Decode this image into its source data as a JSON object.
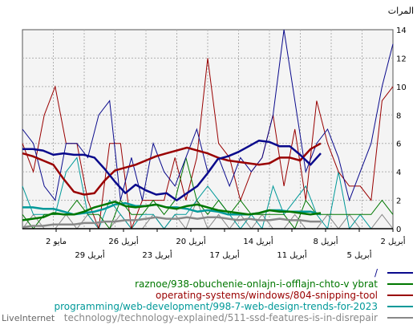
{
  "chart_data": {
    "type": "line",
    "title": "",
    "ylabel": "المرات",
    "xlabel": "",
    "ylim": [
      0,
      14
    ],
    "y_ticks": [
      0,
      2,
      4,
      6,
      8,
      10,
      12,
      14
    ],
    "x_axis_reversed": true,
    "x_tick_labels_row1": [
      "2 أبريل",
      "8 أبريل",
      "14 أبريل",
      "20 أبريل",
      "26 أبريل",
      "2 مايو"
    ],
    "x_tick_labels_row2": [
      "5 أبريل",
      "11 أبريل",
      "17 أبريل",
      "23 أبريل",
      "29 أبريل"
    ],
    "grid": true,
    "legend_position": "bottom-right",
    "footer_left": "LiveInternet",
    "series": [
      {
        "name": "/",
        "color": "#0a0a8c",
        "raw": [
          13,
          10,
          6,
          4,
          2,
          5,
          7,
          6,
          4,
          9,
          14,
          8,
          5,
          4,
          5,
          3,
          5,
          4,
          7,
          5,
          3,
          4,
          6,
          2,
          5,
          2,
          9,
          8,
          5,
          6,
          6,
          2,
          3,
          6,
          7
        ],
        "avg": [
          5.3,
          4.5,
          5.2,
          5.8,
          5.8,
          6.1,
          6.2,
          5.8,
          5.4,
          5.1,
          4.9,
          3.9,
          3.0,
          2.5,
          2.0,
          2.5,
          2.4,
          2.7,
          3.1,
          2.5,
          3.3,
          4.2,
          5.0,
          5.2,
          5.2,
          5.3,
          5.2,
          5.5,
          5.6,
          5.6
        ]
      },
      {
        "name": "raznoe/938-obuchenie-onlajn-i-offlajn-chto-v ybrat",
        "color": "#007700",
        "raw": [
          1,
          2,
          1,
          1,
          1,
          1,
          1,
          1,
          2,
          0,
          1,
          1,
          1,
          1,
          2,
          1,
          2,
          1,
          2,
          5,
          2,
          1,
          2,
          1,
          1,
          2,
          0,
          1,
          1,
          2,
          1,
          1,
          1,
          0,
          1
        ],
        "avg": [
          1.1,
          1.0,
          1.1,
          1.2,
          1.2,
          1.3,
          1.1,
          1.0,
          1.1,
          1.2,
          1.3,
          1.5,
          1.7,
          1.6,
          1.4,
          1.5,
          1.7,
          1.6,
          1.5,
          1.6,
          1.9,
          1.7,
          1.5,
          1.2,
          1.0,
          1.0,
          1.1,
          0.8,
          0.7,
          0.6
        ]
      },
      {
        "name": "operating-systems/windows/804-snipping-tool",
        "color": "#990000",
        "raw": [
          10,
          9,
          2,
          3,
          3,
          4,
          6,
          9,
          2,
          7,
          3,
          8,
          5,
          4,
          2,
          5,
          6,
          12,
          5,
          2,
          5,
          2,
          2,
          2,
          0,
          6,
          6,
          0,
          2,
          6,
          6,
          10,
          8,
          4,
          6
        ],
        "avg": [
          6.0,
          5.6,
          4.8,
          5.0,
          5.0,
          4.6,
          4.5,
          4.6,
          4.7,
          4.8,
          5.0,
          5.3,
          5.5,
          5.7,
          5.5,
          5.3,
          5.1,
          4.8,
          4.5,
          4.3,
          4.1,
          3.4,
          2.5,
          2.4,
          2.6,
          3.5,
          4.5,
          4.8,
          5.1,
          5.3
        ]
      },
      {
        "name": "programming/web-development/998-7-web-design-trends-for-2023",
        "color": "#009999",
        "raw": [
          0,
          0,
          0,
          1,
          0,
          4,
          0,
          1,
          3,
          2,
          1,
          3,
          0,
          1,
          0,
          1,
          2,
          3,
          2,
          1,
          1,
          0,
          1,
          1,
          0,
          1,
          2,
          0,
          1,
          5,
          4,
          1,
          1,
          1,
          3
        ],
        "avg": [
          1.0,
          1.2,
          1.2,
          1.2,
          1.3,
          1.3,
          1.1,
          1.0,
          1.0,
          1.0,
          1.2,
          1.3,
          1.2,
          1.4,
          1.5,
          1.5,
          1.7,
          1.6,
          1.6,
          1.8,
          1.7,
          1.4,
          1.2,
          1.1,
          1.0,
          1.2,
          1.4,
          1.4,
          1.5,
          1.5
        ]
      },
      {
        "name": "technology/technology-explained/511-ssd-features-is-in-disrepair",
        "color": "#888888",
        "raw": [
          0,
          1,
          0,
          0,
          1,
          0,
          1,
          0,
          0,
          1,
          0,
          0,
          1,
          0,
          1,
          0,
          1,
          0,
          2,
          0,
          1,
          0,
          1,
          0,
          0,
          1,
          0,
          0,
          1,
          0,
          1,
          0,
          0,
          1,
          0
        ],
        "avg": [
          0.5,
          0.5,
          0.6,
          0.6,
          0.7,
          0.6,
          0.6,
          0.7,
          0.6,
          0.7,
          0.8,
          0.8,
          0.7,
          0.8,
          0.7,
          0.7,
          0.8,
          0.7,
          0.6,
          0.6,
          0.5,
          0.5,
          0.4,
          0.4,
          0.3,
          0.3,
          0.3,
          0.2,
          0.2,
          0.1
        ]
      }
    ]
  }
}
